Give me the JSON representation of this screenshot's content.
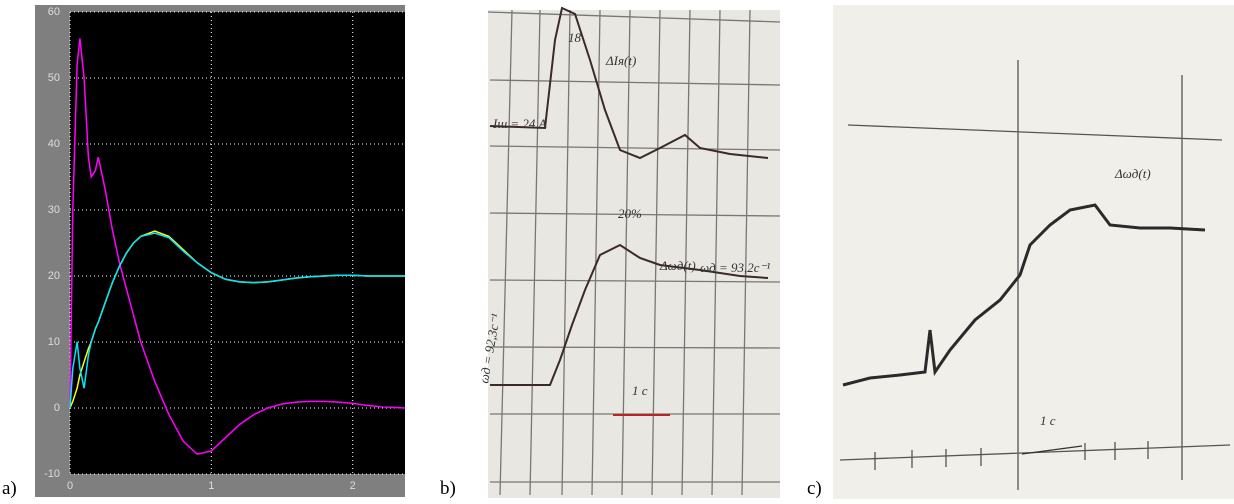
{
  "chart_data": {
    "type": "line",
    "x": [
      0,
      0.02,
      0.05,
      0.07,
      0.1,
      0.13,
      0.15,
      0.18,
      0.2,
      0.25,
      0.3,
      0.35,
      0.4,
      0.45,
      0.5,
      0.6,
      0.7,
      0.8,
      0.9,
      1.0,
      1.1,
      1.2,
      1.3,
      1.4,
      1.5,
      1.6,
      1.7,
      1.8,
      1.9,
      2.0,
      2.1,
      2.2,
      2.37
    ],
    "series": [
      {
        "color": "#ff00ff",
        "values": [
          0,
          30,
          52,
          56,
          50,
          38,
          35,
          36,
          38,
          33,
          27,
          22,
          18,
          14,
          10,
          4,
          -1,
          -5,
          -7,
          -6.5,
          -4.5,
          -2.5,
          -1,
          0,
          0.6,
          0.9,
          1,
          1,
          0.9,
          0.7,
          0.4,
          0.2,
          0
        ]
      },
      {
        "color": "#ffff00",
        "values": [
          0,
          1,
          3,
          5,
          7,
          9,
          10,
          12,
          13,
          16,
          19,
          21.5,
          23.5,
          25,
          26,
          26.8,
          26,
          24,
          22,
          20.5,
          19.5,
          19.1,
          19,
          19.1,
          19.4,
          19.7,
          19.9,
          20,
          20.1,
          20.1,
          20,
          20,
          20
        ]
      },
      {
        "color": "#00e5ff",
        "values": [
          0,
          6,
          10,
          6,
          3,
          8,
          10,
          12,
          13,
          16,
          19,
          21.5,
          23.5,
          25,
          26,
          26.5,
          25.8,
          23.8,
          22,
          20.5,
          19.5,
          19.1,
          19,
          19.1,
          19.4,
          19.7,
          19.9,
          20,
          20.1,
          20.1,
          20,
          20,
          20
        ]
      }
    ],
    "xlim": [
      0,
      2.37
    ],
    "ylim": [
      -10,
      60
    ],
    "xticks": [
      0,
      1,
      2
    ],
    "yticks": [
      -10,
      0,
      10,
      20,
      30,
      40,
      50,
      60
    ],
    "grid": true
  },
  "panels": {
    "a": {
      "label": "a)"
    },
    "b": {
      "label": "b)",
      "annotations": [
        "Iш = 24 A",
        "18",
        "ΔIя(t)",
        "20%",
        "Δωд(t)",
        "ωд = 93,2c⁻¹",
        "ωд = 92,3c⁻¹",
        "1 c"
      ]
    },
    "c": {
      "label": "c)",
      "annotations": [
        "Δωд(t)",
        "1 c"
      ]
    }
  }
}
